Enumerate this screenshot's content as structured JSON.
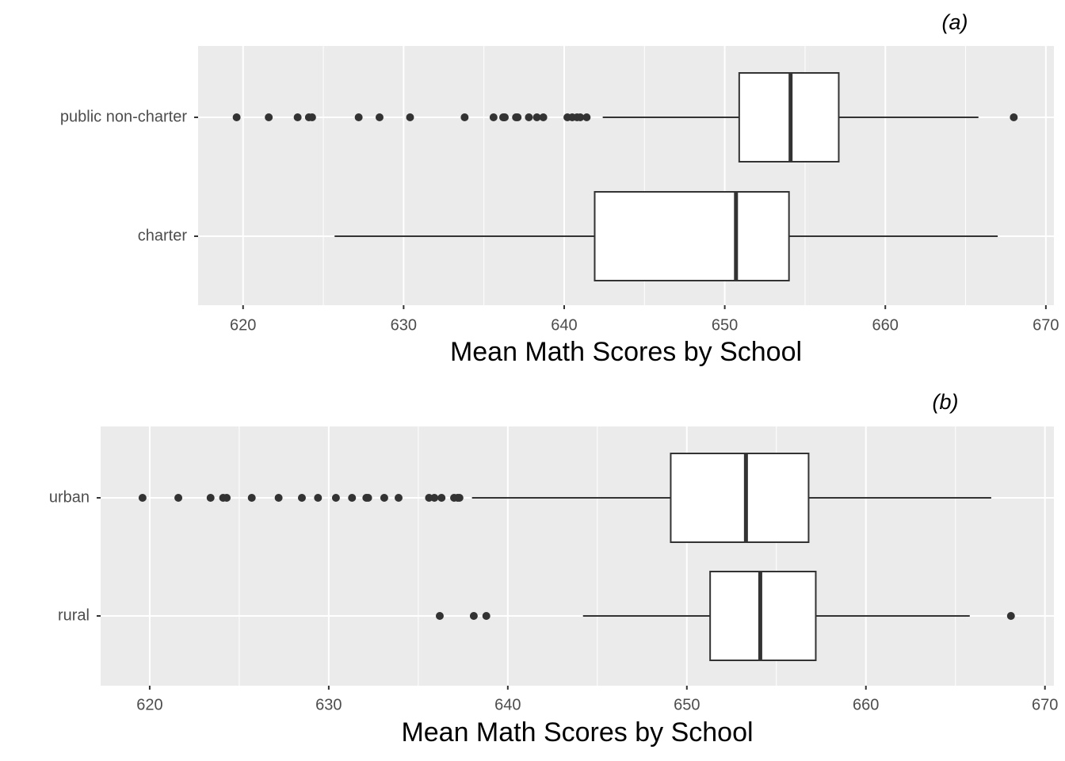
{
  "chart_data": [
    {
      "type": "boxplot",
      "title": "(a)",
      "xlabel": "Mean Math Scores by School",
      "xlim": [
        617.2,
        670.5
      ],
      "xticks": [
        620,
        630,
        640,
        650,
        660,
        670
      ],
      "grid": true,
      "box_fill": "#ffffff",
      "line_color": "#333333",
      "boxes": [
        {
          "name": "public non-charter",
          "whislo": 642.4,
          "q1": 650.9,
          "median": 654.1,
          "q3": 657.1,
          "whishi": 665.8,
          "outliers": [
            619.6,
            621.6,
            623.4,
            624.1,
            624.3,
            627.2,
            628.5,
            630.4,
            633.8,
            635.6,
            636.2,
            636.3,
            637.0,
            637.1,
            637.8,
            638.3,
            638.7,
            640.2,
            640.5,
            640.8,
            641.0,
            641.4,
            668.0
          ]
        },
        {
          "name": "charter",
          "whislo": 625.7,
          "q1": 641.9,
          "median": 650.7,
          "q3": 654.0,
          "whishi": 667.0,
          "outliers": []
        }
      ]
    },
    {
      "type": "boxplot",
      "title": "(b)",
      "xlabel": "Mean Math Scores by School",
      "xlim": [
        617.26,
        670.5
      ],
      "xticks": [
        620,
        630,
        640,
        650,
        660,
        670
      ],
      "grid": true,
      "box_fill": "#ffffff",
      "line_color": "#333333",
      "boxes": [
        {
          "name": "urban",
          "whislo": 638.0,
          "q1": 649.1,
          "median": 653.3,
          "q3": 656.8,
          "whishi": 667.0,
          "outliers": [
            619.6,
            621.6,
            623.4,
            624.1,
            624.3,
            625.7,
            627.2,
            628.5,
            629.4,
            630.4,
            631.3,
            632.1,
            632.2,
            633.1,
            633.9,
            635.6,
            635.9,
            636.3,
            637.0,
            637.2,
            637.3
          ]
        },
        {
          "name": "rural",
          "whislo": 644.2,
          "q1": 651.3,
          "median": 654.1,
          "q3": 657.2,
          "whishi": 665.8,
          "outliers": [
            636.2,
            638.1,
            638.8,
            668.1
          ]
        }
      ]
    }
  ]
}
